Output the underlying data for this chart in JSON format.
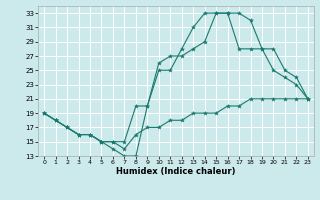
{
  "xlabel": "Humidex (Indice chaleur)",
  "bg_color": "#cce9ec",
  "grid_color": "#ffffff",
  "line_color": "#1a7a6e",
  "xlim": [
    -0.5,
    23.5
  ],
  "ylim": [
    13,
    34
  ],
  "yticks": [
    13,
    15,
    17,
    19,
    21,
    23,
    25,
    27,
    29,
    31,
    33
  ],
  "xticks": [
    0,
    1,
    2,
    3,
    4,
    5,
    6,
    7,
    8,
    9,
    10,
    11,
    12,
    13,
    14,
    15,
    16,
    17,
    18,
    19,
    20,
    21,
    22,
    23
  ],
  "series": [
    {
      "x": [
        0,
        1,
        2,
        3,
        4,
        5,
        6,
        7,
        8,
        9,
        10,
        11,
        12,
        13,
        14,
        15,
        16,
        17,
        18,
        19,
        20,
        21,
        22,
        23
      ],
      "y": [
        19,
        18,
        17,
        16,
        16,
        15,
        14,
        13,
        13,
        20,
        25,
        25,
        28,
        31,
        33,
        33,
        33,
        33,
        32,
        28,
        25,
        24,
        23,
        21
      ]
    },
    {
      "x": [
        0,
        1,
        2,
        3,
        4,
        5,
        6,
        7,
        8,
        9,
        10,
        11,
        12,
        13,
        14,
        15,
        16,
        17,
        18,
        19,
        20,
        21,
        22,
        23
      ],
      "y": [
        19,
        18,
        17,
        16,
        16,
        15,
        15,
        15,
        20,
        20,
        26,
        27,
        27,
        28,
        29,
        33,
        33,
        28,
        28,
        28,
        28,
        25,
        24,
        21
      ]
    },
    {
      "x": [
        0,
        1,
        2,
        3,
        4,
        5,
        6,
        7,
        8,
        9,
        10,
        11,
        12,
        13,
        14,
        15,
        16,
        17,
        18,
        19,
        20,
        21,
        22,
        23
      ],
      "y": [
        19,
        18,
        17,
        16,
        16,
        15,
        15,
        14,
        16,
        17,
        17,
        18,
        18,
        19,
        19,
        19,
        20,
        20,
        21,
        21,
        21,
        21,
        21,
        21
      ]
    }
  ]
}
